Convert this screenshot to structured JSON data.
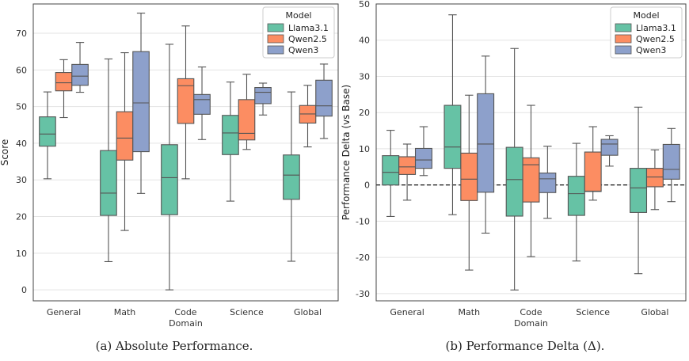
{
  "colors": {
    "Llama3.1": "#66c2a5",
    "Qwen2.5": "#fc8d62",
    "Qwen3": "#8da0cb"
  },
  "captions": {
    "a": "(a) Absolute Performance.",
    "b": "(b) Performance Delta (Δ)."
  },
  "chart_data": [
    {
      "type": "box",
      "ylabel": "Score",
      "xlabel": "Domain",
      "ylim": [
        -3,
        78
      ],
      "yticks": [
        0,
        10,
        20,
        30,
        40,
        50,
        60,
        70
      ],
      "grid": true,
      "legend": {
        "title": "Model",
        "placement": "top-right",
        "entries": [
          "Llama3.1",
          "Qwen2.5",
          "Qwen3"
        ]
      },
      "categories": [
        "General",
        "Math",
        "Code",
        "Science",
        "Global"
      ],
      "series": [
        {
          "name": "Llama3.1",
          "boxes": [
            {
              "min": 30.3,
              "q1": 39.2,
              "median": 42.5,
              "q3": 47.2,
              "max": 54.0
            },
            {
              "min": 7.7,
              "q1": 20.3,
              "median": 26.4,
              "q3": 38.0,
              "max": 63.0
            },
            {
              "min": 0.0,
              "q1": 20.5,
              "median": 30.6,
              "q3": 39.6,
              "max": 67.0
            },
            {
              "min": 24.2,
              "q1": 36.9,
              "median": 42.8,
              "q3": 47.6,
              "max": 56.7
            },
            {
              "min": 7.8,
              "q1": 24.7,
              "median": 31.3,
              "q3": 36.8,
              "max": 54.0
            }
          ]
        },
        {
          "name": "Qwen2.5",
          "boxes": [
            {
              "min": 47.0,
              "q1": 54.3,
              "median": 56.5,
              "q3": 59.3,
              "max": 62.8
            },
            {
              "min": 16.2,
              "q1": 35.4,
              "median": 41.4,
              "q3": 48.6,
              "max": 64.7
            },
            {
              "min": 30.3,
              "q1": 45.4,
              "median": 55.7,
              "q3": 57.6,
              "max": 72.0
            },
            {
              "min": 38.3,
              "q1": 40.9,
              "median": 42.7,
              "q3": 51.9,
              "max": 58.8
            },
            {
              "min": 39.0,
              "q1": 45.5,
              "median": 48.0,
              "q3": 50.3,
              "max": 55.8
            }
          ]
        },
        {
          "name": "Qwen3",
          "boxes": [
            {
              "min": 53.9,
              "q1": 55.8,
              "median": 58.3,
              "q3": 61.5,
              "max": 67.5
            },
            {
              "min": 26.3,
              "q1": 37.7,
              "median": 51.0,
              "q3": 65.0,
              "max": 75.5
            },
            {
              "min": 41.0,
              "q1": 47.9,
              "median": 51.9,
              "q3": 53.3,
              "max": 60.8
            },
            {
              "min": 47.7,
              "q1": 50.8,
              "median": 53.9,
              "q3": 55.2,
              "max": 56.4
            },
            {
              "min": 41.3,
              "q1": 47.4,
              "median": 50.2,
              "q3": 57.2,
              "max": 61.6
            }
          ]
        }
      ]
    },
    {
      "type": "box",
      "ylabel": "Performance Delta (vs Base)",
      "xlabel": "Domain",
      "ylim": [
        -32,
        50
      ],
      "yticks": [
        -30,
        -20,
        -10,
        0,
        10,
        20,
        30,
        40,
        50
      ],
      "grid": true,
      "reference_line": {
        "y": 0,
        "style": "dashed"
      },
      "legend": {
        "title": "Model",
        "placement": "top-right",
        "entries": [
          "Llama3.1",
          "Qwen2.5",
          "Qwen3"
        ]
      },
      "categories": [
        "General",
        "Math",
        "Code",
        "Science",
        "Global"
      ],
      "series": [
        {
          "name": "Llama3.1",
          "boxes": [
            {
              "min": -8.7,
              "q1": 0.0,
              "median": 3.5,
              "q3": 8.1,
              "max": 15.1
            },
            {
              "min": -8.2,
              "q1": 4.6,
              "median": 10.5,
              "q3": 22.0,
              "max": 47.0
            },
            {
              "min": -29.0,
              "q1": -8.6,
              "median": 1.5,
              "q3": 10.4,
              "max": 37.7
            },
            {
              "min": -21.0,
              "q1": -8.4,
              "median": -2.4,
              "q3": 2.4,
              "max": 11.5
            },
            {
              "min": -24.5,
              "q1": -7.6,
              "median": -0.8,
              "q3": 4.6,
              "max": 21.5
            }
          ]
        },
        {
          "name": "Qwen2.5",
          "boxes": [
            {
              "min": -4.2,
              "q1": 2.9,
              "median": 5.0,
              "q3": 7.8,
              "max": 11.3
            },
            {
              "min": -23.5,
              "q1": -4.3,
              "median": 1.6,
              "q3": 8.8,
              "max": 24.8
            },
            {
              "min": -19.8,
              "q1": -4.7,
              "median": 5.6,
              "q3": 7.5,
              "max": 22.0
            },
            {
              "min": -4.2,
              "q1": -1.8,
              "median": -1.7,
              "q3": 9.1,
              "max": 16.1
            },
            {
              "min": -6.8,
              "q1": -0.5,
              "median": 2.2,
              "q3": 4.6,
              "max": 9.7
            }
          ]
        },
        {
          "name": "Qwen3",
          "boxes": [
            {
              "min": 2.6,
              "q1": 4.6,
              "median": 6.9,
              "q3": 10.1,
              "max": 16.1
            },
            {
              "min": -13.3,
              "q1": -2.0,
              "median": 11.3,
              "q3": 25.2,
              "max": 35.6
            },
            {
              "min": -9.2,
              "q1": -2.1,
              "median": 1.7,
              "q3": 3.3,
              "max": 10.7
            },
            {
              "min": 5.2,
              "q1": 8.2,
              "median": 11.3,
              "q3": 12.6,
              "max": 13.6
            },
            {
              "min": -4.6,
              "q1": 1.6,
              "median": 4.3,
              "q3": 11.2,
              "max": 15.6
            }
          ]
        }
      ]
    }
  ]
}
